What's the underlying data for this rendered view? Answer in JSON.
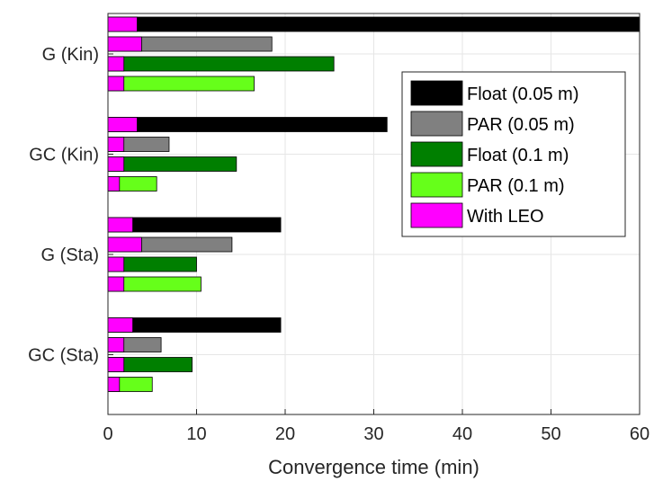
{
  "chart_data": {
    "type": "bar",
    "orientation": "horizontal",
    "xlabel": "Convergence time (min)",
    "ylabel": "",
    "xlim": [
      0,
      60
    ],
    "xticks": [
      "0",
      "10",
      "20",
      "30",
      "40",
      "50",
      "60"
    ],
    "grid": true,
    "legend_position": "top-right",
    "categories": [
      "G (Kin)",
      "GC (Kin)",
      "G (Sta)",
      "GC (Sta)"
    ],
    "series": [
      {
        "name": "Float (0.05 m)",
        "color": "#000000",
        "values": [
          60,
          31.5,
          19.5,
          19.5
        ]
      },
      {
        "name": "PAR (0.05 m)",
        "color": "#808080",
        "values": [
          18.5,
          6.9,
          14.0,
          6.0
        ]
      },
      {
        "name": "Float (0.1 m)",
        "color": "#007f00",
        "values": [
          25.5,
          14.5,
          10.0,
          9.5
        ]
      },
      {
        "name": "PAR (0.1 m)",
        "color": "#66ff1a",
        "values": [
          16.5,
          5.5,
          10.5,
          5.0
        ]
      }
    ],
    "with_leo": {
      "name": "With LEO",
      "color": "#ff00ff",
      "values": [
        [
          3.3,
          3.8,
          1.8,
          1.8
        ],
        [
          3.3,
          1.8,
          1.8,
          1.3
        ],
        [
          2.8,
          3.8,
          1.8,
          1.8
        ],
        [
          2.8,
          1.8,
          1.8,
          1.3
        ]
      ]
    }
  }
}
